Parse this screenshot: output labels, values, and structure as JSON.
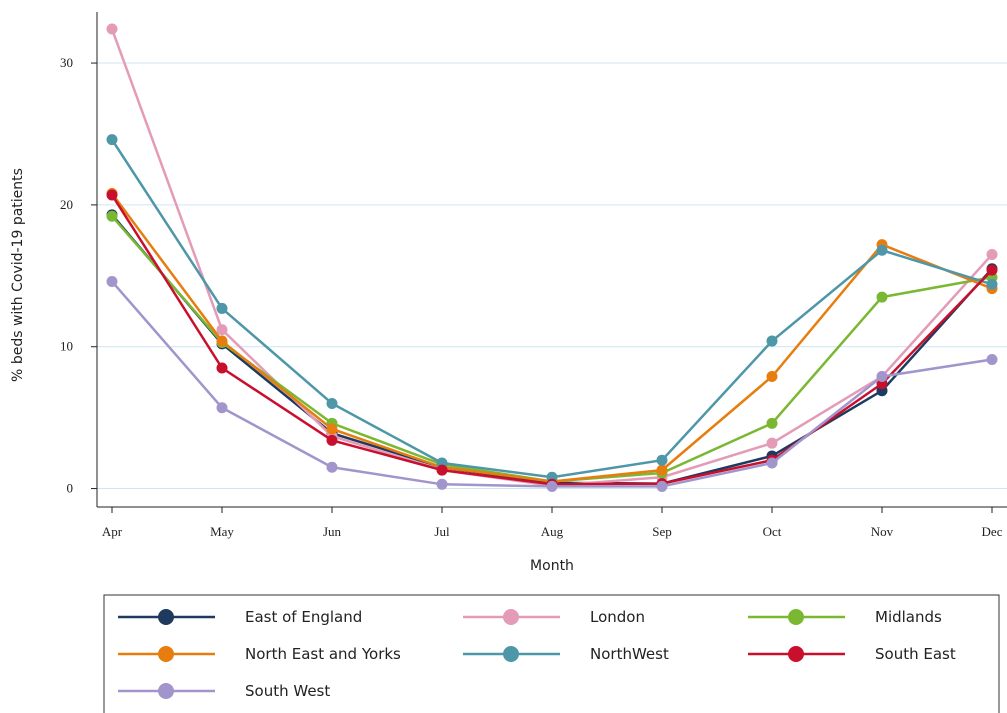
{
  "chart_data": {
    "type": "line",
    "x_label": "Month",
    "y_label": "% beds with Covid-19 patients",
    "categories": [
      "Apr",
      "May",
      "Jun",
      "Jul",
      "Aug",
      "Sep",
      "Oct",
      "Nov",
      "Dec"
    ],
    "ylim": [
      -1.3,
      33.6
    ],
    "yticks": [
      0,
      10,
      20,
      30
    ],
    "grid": true,
    "series": [
      {
        "name": "East of England",
        "color": "#1f3a5f",
        "values": [
          19.3,
          10.2,
          3.9,
          1.5,
          0.4,
          0.35,
          2.3,
          6.9,
          15.5
        ]
      },
      {
        "name": "London",
        "color": "#e39bb8",
        "values": [
          32.4,
          11.2,
          3.7,
          1.3,
          0.2,
          0.8,
          3.2,
          7.9,
          16.5
        ]
      },
      {
        "name": "Midlands",
        "color": "#7ab833",
        "values": [
          19.2,
          10.3,
          4.6,
          1.7,
          0.5,
          1.1,
          4.6,
          13.5,
          14.9
        ]
      },
      {
        "name": "North East and Yorks",
        "color": "#e87d0f",
        "values": [
          20.8,
          10.4,
          4.2,
          1.5,
          0.5,
          1.3,
          7.9,
          17.2,
          14.1
        ]
      },
      {
        "name": "NorthWest",
        "color": "#4e97a8",
        "values": [
          24.6,
          12.7,
          6.0,
          1.8,
          0.8,
          2.0,
          10.4,
          16.8,
          14.4
        ]
      },
      {
        "name": "South East",
        "color": "#c8102e",
        "values": [
          20.7,
          8.5,
          3.4,
          1.3,
          0.3,
          0.35,
          2.0,
          7.4,
          15.4
        ]
      },
      {
        "name": "South West",
        "color": "#a195cc",
        "values": [
          14.6,
          5.7,
          1.5,
          0.3,
          0.15,
          0.15,
          1.8,
          7.9,
          9.1
        ]
      }
    ]
  }
}
